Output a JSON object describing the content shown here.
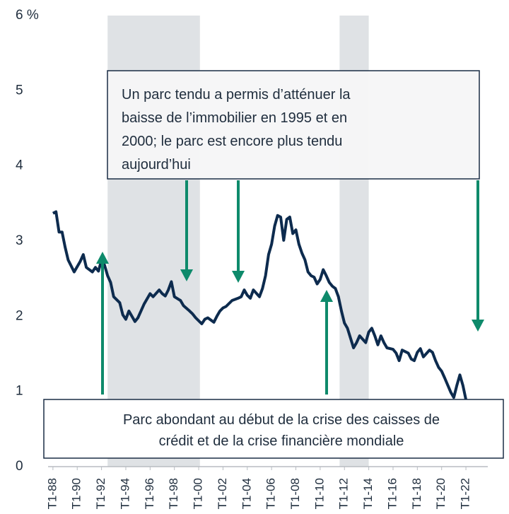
{
  "chart_data": {
    "type": "line",
    "xlim": [
      1987.6,
      2023.8
    ],
    "ylim": [
      0,
      6
    ],
    "yticks": [
      0,
      1,
      2,
      3,
      4,
      5,
      {
        "value": 6,
        "label": "6 %"
      }
    ],
    "xticks": [
      {
        "value": 1988,
        "label": "T1-88"
      },
      {
        "value": 1990,
        "label": "T1-90"
      },
      {
        "value": 1992,
        "label": "T1-92"
      },
      {
        "value": 1994,
        "label": "T1-94"
      },
      {
        "value": 1996,
        "label": "T1-96"
      },
      {
        "value": 1998,
        "label": "T1-98"
      },
      {
        "value": 2000,
        "label": "T1-00"
      },
      {
        "value": 2002,
        "label": "T1-02"
      },
      {
        "value": 2004,
        "label": "T1-04"
      },
      {
        "value": 2006,
        "label": "T1-06"
      },
      {
        "value": 2008,
        "label": "T1-08"
      },
      {
        "value": 2010,
        "label": "T1-10"
      },
      {
        "value": 2012,
        "label": "T1-12"
      },
      {
        "value": 2014,
        "label": "T1-14"
      },
      {
        "value": 2016,
        "label": "T1-16"
      },
      {
        "value": 2018,
        "label": "T1-18"
      },
      {
        "value": 2020,
        "label": "T1-20"
      },
      {
        "value": 2022,
        "label": "T1-22"
      }
    ],
    "shaded": [
      [
        1992.5,
        2000.1
      ],
      [
        2011.6,
        2014.0
      ]
    ],
    "grid": false,
    "series": [
      {
        "color": "#0d2b4e",
        "x": [
          1988.0,
          1988.25,
          1988.5,
          1988.75,
          1989.0,
          1989.25,
          1989.75,
          1990.25,
          1990.5,
          1990.75,
          1991.25,
          1991.5,
          1991.75,
          1992.0,
          1992.25,
          1992.5,
          1992.75,
          1993.0,
          1993.5,
          1993.75,
          1994.0,
          1994.25,
          1994.75,
          1995.0,
          1995.25,
          1995.5,
          1996.0,
          1996.25,
          1996.75,
          1997.0,
          1997.25,
          1997.5,
          1997.75,
          1998.0,
          1998.5,
          1998.75,
          1999.25,
          1999.5,
          1999.75,
          2000.25,
          2000.5,
          2000.75,
          2001.25,
          2001.5,
          2001.75,
          2002.0,
          2002.25,
          2002.75,
          2003.25,
          2003.5,
          2003.75,
          2004.0,
          2004.25,
          2004.5,
          2005.0,
          2005.25,
          2005.5,
          2005.75,
          2006.0,
          2006.25,
          2006.5,
          2006.75,
          2007.0,
          2007.25,
          2007.5,
          2007.75,
          2008.0,
          2008.25,
          2008.5,
          2008.75,
          2009.0,
          2009.25,
          2009.5,
          2009.75,
          2010.0,
          2010.25,
          2010.5,
          2010.75,
          2011.0,
          2011.25,
          2011.5,
          2011.75,
          2012.0,
          2012.25,
          2012.75,
          2013.0,
          2013.25,
          2013.75,
          2014.0,
          2014.25,
          2014.5,
          2014.75,
          2015.0,
          2015.25,
          2015.5,
          2016.0,
          2016.25,
          2016.5,
          2016.75,
          2017.25,
          2017.5,
          2017.75,
          2018.0,
          2018.25,
          2018.5,
          2019.0,
          2019.25,
          2019.5,
          2019.75,
          2020.0,
          2020.25,
          2020.75,
          2021.0,
          2021.25,
          2021.5,
          2021.75,
          2022.0
        ],
        "values": [
          3.37,
          3.39,
          3.12,
          3.12,
          2.92,
          2.75,
          2.59,
          2.73,
          2.82,
          2.65,
          2.59,
          2.65,
          2.6,
          2.75,
          2.68,
          2.54,
          2.45,
          2.26,
          2.18,
          2.02,
          1.96,
          2.07,
          1.93,
          1.98,
          2.07,
          2.16,
          2.3,
          2.26,
          2.35,
          2.3,
          2.27,
          2.35,
          2.46,
          2.26,
          2.21,
          2.14,
          2.07,
          2.03,
          1.98,
          1.9,
          1.96,
          1.98,
          1.92,
          2.0,
          2.07,
          2.11,
          2.13,
          2.21,
          2.24,
          2.26,
          2.35,
          2.28,
          2.24,
          2.35,
          2.26,
          2.37,
          2.54,
          2.82,
          2.96,
          3.2,
          3.34,
          3.32,
          3.01,
          3.29,
          3.32,
          3.1,
          3.15,
          2.96,
          2.84,
          2.75,
          2.59,
          2.54,
          2.52,
          2.43,
          2.49,
          2.62,
          2.54,
          2.45,
          2.4,
          2.37,
          2.26,
          2.07,
          1.91,
          1.84,
          1.58,
          1.65,
          1.74,
          1.65,
          1.79,
          1.84,
          1.74,
          1.62,
          1.74,
          1.65,
          1.58,
          1.56,
          1.51,
          1.41,
          1.55,
          1.51,
          1.43,
          1.41,
          1.52,
          1.57,
          1.46,
          1.55,
          1.52,
          1.41,
          1.32,
          1.27,
          1.18,
          0.99,
          0.92,
          1.08,
          1.22,
          1.08,
          0.89
        ]
      }
    ],
    "annotations": [
      {
        "lines": [
          "Un parc tendu a permis d’atténuer la",
          "baisse de l’immobilier en 1995 et en",
          "2000; le parc est encore plus tendu",
          "aujourd’hui"
        ]
      },
      {
        "lines": [
          "Parc abondant au début de la crise des caisses de",
          "crédit et de la crise financière mondiale"
        ]
      }
    ]
  }
}
